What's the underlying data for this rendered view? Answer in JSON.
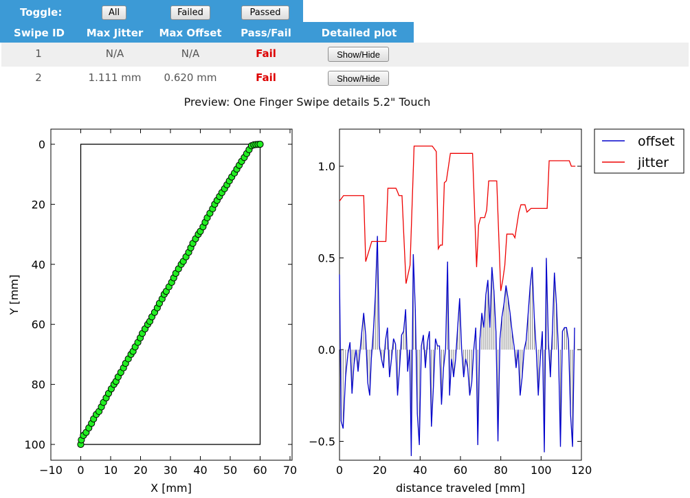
{
  "toolbar": {
    "toggle_label": "Toggle:",
    "buttons": {
      "all": "All",
      "failed": "Failed",
      "passed": "Passed"
    }
  },
  "table": {
    "columns": [
      "Swipe ID",
      "Max Jitter",
      "Max Offset",
      "Pass/Fail",
      "Detailed plot"
    ],
    "rows": [
      {
        "id": "1",
        "max_jitter": "N/A",
        "max_offset": "N/A",
        "result": "Fail",
        "action": "Show/Hide"
      },
      {
        "id": "2",
        "max_jitter": "1.111 mm",
        "max_offset": "0.620 mm",
        "result": "Fail",
        "action": "Show/Hide"
      }
    ]
  },
  "preview": {
    "title": "Preview: One Finger Swipe details 5.2\" Touch"
  },
  "colors": {
    "header_blue": "#3c9ad6",
    "fail_red": "#dd0000",
    "offset_blue": "#0000cc",
    "jitter_red": "#ee0000",
    "marker_green": "#22ee22"
  },
  "chart_data": [
    {
      "type": "scatter",
      "title": "",
      "xlabel": "X [mm]",
      "ylabel": "Y [mm]",
      "xlim": [
        -10,
        70
      ],
      "ylim": [
        100,
        0
      ],
      "y_inverted": true,
      "xticks": [
        -10,
        0,
        10,
        20,
        30,
        40,
        50,
        60,
        70
      ],
      "yticks": [
        0,
        20,
        40,
        60,
        80,
        100
      ],
      "rectangle": {
        "x": [
          0,
          60
        ],
        "y": [
          0,
          100
        ]
      },
      "points": {
        "x": [
          0,
          0.2,
          0.9,
          1.8,
          2.7,
          3.6,
          4.3,
          5.2,
          6.1,
          6.9,
          7.6,
          8.5,
          9.3,
          10.2,
          11.1,
          11.8,
          12.5,
          13.4,
          14.3,
          15.0,
          15.9,
          16.8,
          17.5,
          18.2,
          19.1,
          19.9,
          20.6,
          21.5,
          22.4,
          23.1,
          23.8,
          24.7,
          25.6,
          26.3,
          27.2,
          27.9,
          28.6,
          29.5,
          30.4,
          31.1,
          31.8,
          32.7,
          33.6,
          34.3,
          35.2,
          36.1,
          36.8,
          37.5,
          38.4,
          39.3,
          40.0,
          40.9,
          41.6,
          42.3,
          43.2,
          44.1,
          44.8,
          45.6,
          46.4,
          47.2,
          48.1,
          48.9,
          49.7,
          50.5,
          51.4,
          52.2,
          53.0,
          53.8,
          54.7,
          55.5,
          56.3,
          57.1,
          57.9,
          58.6,
          59.3,
          60
        ],
        "y": [
          100,
          98.5,
          97,
          96,
          94.5,
          93,
          91.5,
          90,
          89,
          87.5,
          86,
          84.5,
          83,
          81.5,
          80,
          79,
          77.5,
          76,
          74.5,
          73,
          71.5,
          70,
          69,
          67.5,
          66,
          64.5,
          63,
          61.5,
          60,
          59,
          57.5,
          56,
          54.5,
          53,
          51.5,
          50,
          49,
          47.5,
          46,
          44.5,
          43,
          41.5,
          40,
          39,
          37.5,
          36,
          34.5,
          33,
          31.5,
          30,
          29,
          27.5,
          26,
          24.5,
          23,
          21.5,
          20,
          18.7,
          17.4,
          16.1,
          14.8,
          13.5,
          12.2,
          10.9,
          9.6,
          8.3,
          7.0,
          5.7,
          4.4,
          3.1,
          1.8,
          0.5,
          0.2,
          0.1,
          0.05,
          0
        ]
      }
    },
    {
      "type": "line",
      "title": "",
      "xlabel": "distance traveled [mm]",
      "ylabel": "",
      "xlim": [
        0,
        120
      ],
      "ylim": [
        -0.6,
        1.2
      ],
      "xticks": [
        0,
        20,
        40,
        60,
        80,
        100,
        120
      ],
      "yticks": [
        -0.5,
        0.0,
        0.5,
        1.0
      ],
      "legend": "top-right-outside",
      "series": [
        {
          "name": "offset",
          "color": "#0000cc",
          "x": [
            0,
            0.8,
            1.8,
            3.0,
            4.2,
            5.2,
            6.2,
            7.2,
            8.2,
            9.2,
            10.0,
            11.0,
            12.0,
            13.0,
            14.0,
            15.0,
            15.8,
            16.8,
            17.8,
            18.8,
            19.8,
            20.8,
            21.8,
            22.8,
            23.8,
            24.8,
            25.8,
            26.8,
            27.8,
            28.8,
            29.8,
            30.8,
            31.8,
            32.8,
            33.8,
            34.8,
            35.6,
            36.6,
            37.6,
            38.6,
            39.6,
            40.6,
            41.6,
            42.6,
            43.6,
            44.6,
            45.6,
            46.6,
            47.6,
            48.6,
            49.6,
            50.6,
            51.6,
            52.6,
            53.6,
            54.6,
            55.6,
            56.6,
            57.6,
            58.6,
            59.6,
            60.6,
            61.6,
            62.6,
            63.6,
            64.6,
            65.6,
            66.6,
            67.6,
            68.6,
            69.6,
            70.6,
            71.6,
            72.6,
            73.6,
            74.6,
            75.6,
            76.6,
            77.6,
            78.6,
            79.6,
            80.6,
            81.6,
            82.6,
            83.6,
            84.6,
            85.6,
            86.6,
            87.6,
            88.6,
            89.6,
            90.6,
            91.6,
            92.6,
            93.6,
            94.6,
            95.6,
            96.6,
            97.6,
            98.6,
            99.6,
            100.6,
            101.6,
            102.6,
            103.6,
            104.6,
            105.6,
            106.6,
            107.6,
            108.6,
            109.6,
            110.6,
            111.6,
            112.6,
            113.6,
            114.6,
            115.6,
            116.6
          ],
          "values": [
            0.41,
            -0.39,
            -0.43,
            -0.15,
            -0.02,
            0.04,
            -0.24,
            -0.08,
            0.0,
            -0.12,
            -0.03,
            0.09,
            0.2,
            0.08,
            -0.18,
            -0.25,
            -0.05,
            0.1,
            0.3,
            0.62,
            0.02,
            -0.05,
            -0.1,
            0.05,
            0.12,
            -0.15,
            -0.05,
            0.06,
            0.03,
            -0.25,
            -0.1,
            0.08,
            0.1,
            0.22,
            -0.12,
            0.0,
            -0.58,
            0.52,
            0.22,
            -0.35,
            -0.52,
            0.02,
            0.08,
            -0.1,
            0.04,
            0.1,
            -0.42,
            -0.2,
            0.06,
            0.02,
            0.02,
            -0.3,
            -0.1,
            0.0,
            0.48,
            -0.25,
            -0.05,
            -0.15,
            -0.05,
            0.12,
            0.28,
            0.0,
            -0.15,
            -0.05,
            -0.1,
            -0.25,
            -0.18,
            0.0,
            0.12,
            -0.52,
            0.05,
            0.2,
            0.12,
            0.3,
            0.38,
            0.12,
            0.45,
            0.32,
            0.1,
            -0.5,
            0.06,
            0.18,
            0.25,
            0.35,
            0.28,
            0.2,
            0.1,
            0.02,
            -0.1,
            0.0,
            -0.25,
            -0.15,
            0.0,
            0.05,
            0.2,
            0.35,
            0.45,
            0.18,
            0.0,
            -0.25,
            -0.05,
            0.1,
            -0.56,
            0.5,
            0.05,
            -0.15,
            0.1,
            0.42,
            0.25,
            0.0,
            -0.53,
            0.1,
            0.12,
            0.12,
            0.05,
            -0.35,
            -0.53,
            0.12
          ],
          "stems": true
        },
        {
          "name": "jitter",
          "color": "#ee0000",
          "x": [
            0,
            2,
            12,
            13,
            16,
            23,
            24,
            28,
            28.8,
            29.5,
            30,
            31,
            33,
            35,
            37,
            38,
            39,
            40,
            41,
            42,
            43,
            45,
            46,
            48,
            49,
            50,
            51,
            52,
            53,
            55,
            56,
            57,
            58,
            61,
            63,
            66,
            68,
            69,
            70,
            72,
            73,
            74,
            76,
            77,
            78,
            80,
            81,
            82,
            83,
            84,
            85,
            86,
            87,
            89,
            90,
            92,
            93,
            95,
            97,
            98,
            100,
            101,
            103,
            104,
            105,
            106,
            107,
            109,
            111,
            112,
            113,
            114,
            115,
            117
          ],
          "values": [
            0.81,
            0.84,
            0.84,
            0.48,
            0.59,
            0.59,
            0.88,
            0.88,
            0.86,
            0.84,
            0.84,
            0.84,
            0.36,
            0.46,
            1.11,
            1.11,
            1.11,
            1.11,
            1.11,
            1.11,
            1.11,
            1.11,
            1.11,
            1.08,
            0.55,
            0.57,
            0.57,
            0.91,
            0.92,
            1.07,
            1.07,
            1.07,
            1.07,
            1.07,
            1.07,
            1.07,
            0.45,
            0.68,
            0.72,
            0.72,
            0.76,
            0.92,
            0.92,
            0.92,
            0.92,
            0.32,
            0.38,
            0.46,
            0.63,
            0.63,
            0.63,
            0.63,
            0.61,
            0.75,
            0.79,
            0.79,
            0.75,
            0.77,
            0.77,
            0.77,
            0.77,
            0.77,
            0.77,
            1.03,
            1.03,
            1.03,
            1.03,
            1.03,
            1.03,
            1.03,
            1.03,
            1.03,
            1.0,
            1.0
          ]
        }
      ]
    }
  ]
}
